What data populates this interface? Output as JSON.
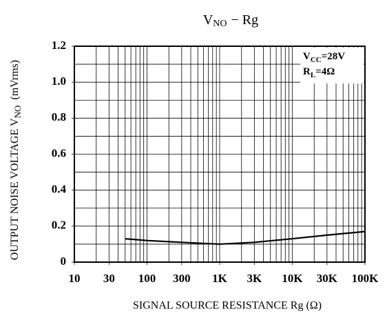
{
  "chart_data": {
    "type": "line",
    "title": {
      "main": "V",
      "sub": "NO",
      "rest": "−  Rg"
    },
    "y_label": {
      "main": "OUTPUT NOISE VOLTAGE V",
      "sub": "NO",
      "rest": "(mVrms)"
    },
    "x_label": "SIGNAL SOURCE RESISTANCE Rg (Ω)",
    "annotations": [
      {
        "main": "V",
        "sub": "CC",
        "rest": "=28V"
      },
      {
        "main": "R",
        "sub": "L",
        "rest": "=4Ω"
      }
    ],
    "x_scale": "log",
    "xlim": [
      10,
      100000
    ],
    "xticks": [
      10,
      30,
      100,
      300,
      {
        "value": 1000,
        "label": "1K"
      },
      {
        "value": 3000,
        "label": "3K"
      },
      {
        "value": 10000,
        "label": "10K"
      },
      {
        "value": 30000,
        "label": "30K"
      },
      {
        "value": 100000,
        "label": "100K"
      }
    ],
    "xgrid": [
      20,
      30,
      40,
      50,
      60,
      70,
      80,
      90,
      100,
      200,
      300,
      400,
      500,
      600,
      700,
      800,
      900,
      1000,
      2000,
      3000,
      4000,
      5000,
      6000,
      7000,
      8000,
      9000,
      10000,
      20000,
      30000,
      40000,
      50000,
      60000,
      70000,
      80000,
      90000
    ],
    "ylim": [
      0,
      1.2
    ],
    "yticks": [
      0,
      0.2,
      0.4,
      0.6,
      0.8,
      {
        "value": 1.0,
        "label": "1.0"
      },
      1.2
    ],
    "ygrid": [
      0.1,
      0.2,
      0.3,
      0.4,
      0.5,
      0.6,
      0.7,
      0.8,
      0.9,
      1.0,
      1.1
    ],
    "series": [
      {
        "name": "VNO",
        "color": "#000000",
        "x": [
          50,
          100,
          300,
          1000,
          3000,
          10000,
          30000,
          100000
        ],
        "values": [
          0.13,
          0.12,
          0.11,
          0.1,
          0.11,
          0.13,
          0.15,
          0.17
        ]
      }
    ]
  }
}
